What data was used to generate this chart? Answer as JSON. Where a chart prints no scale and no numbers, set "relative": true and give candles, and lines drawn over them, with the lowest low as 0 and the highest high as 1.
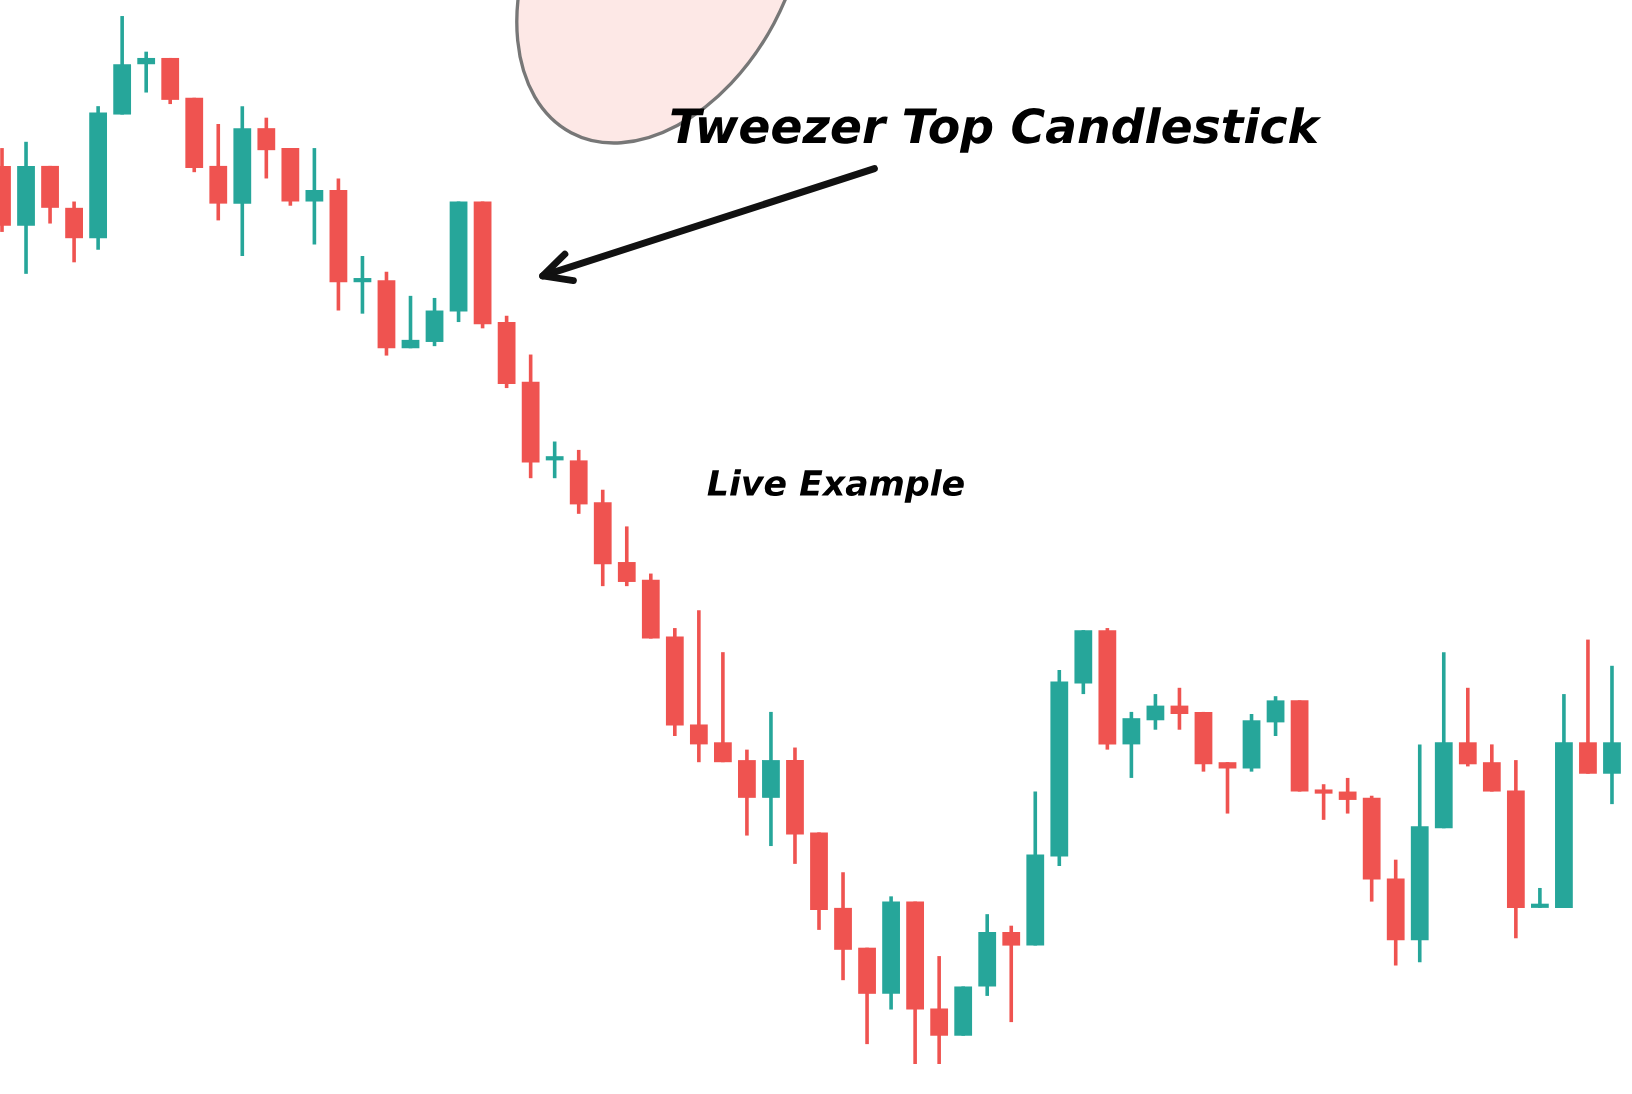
{
  "chart_data": {
    "type": "candlestick",
    "relative": true,
    "categories": [
      null,
      null,
      null,
      null,
      null,
      null,
      null,
      null,
      null,
      null,
      null,
      null,
      null,
      null,
      null,
      null,
      null,
      null,
      null,
      null,
      null,
      null,
      null,
      null,
      null,
      null,
      null,
      null,
      null,
      null,
      null,
      null,
      null,
      null,
      null,
      null,
      null,
      null,
      null,
      null,
      null,
      null,
      null,
      null,
      null,
      null,
      null,
      null,
      null,
      null,
      null,
      null,
      null,
      null,
      null,
      null,
      null,
      null,
      null,
      null,
      null,
      null,
      null,
      null,
      null,
      null,
      null,
      null
    ],
    "ohlc": [
      [
        0.857,
        0.874,
        0.794,
        0.8
      ],
      [
        0.8,
        0.88,
        0.754,
        0.857
      ],
      [
        0.857,
        0.857,
        0.802,
        0.817
      ],
      [
        0.817,
        0.823,
        0.765,
        0.788
      ],
      [
        0.788,
        0.914,
        0.777,
        0.908
      ],
      [
        0.906,
        1.0,
        0.906,
        0.954
      ],
      [
        0.954,
        0.966,
        0.927,
        0.96
      ],
      [
        0.96,
        0.96,
        0.916,
        0.92
      ],
      [
        0.922,
        0.922,
        0.851,
        0.855
      ],
      [
        0.857,
        0.897,
        0.805,
        0.821
      ],
      [
        0.821,
        0.914,
        0.771,
        0.893
      ],
      [
        0.893,
        0.903,
        0.845,
        0.872
      ],
      [
        0.874,
        0.874,
        0.819,
        0.823
      ],
      [
        0.823,
        0.874,
        0.782,
        0.834
      ],
      [
        0.834,
        0.845,
        0.719,
        0.746
      ],
      [
        0.746,
        0.771,
        0.716,
        0.748
      ],
      [
        0.748,
        0.756,
        0.676,
        0.683
      ],
      [
        0.683,
        0.733,
        0.683,
        0.691
      ],
      [
        0.689,
        0.731,
        0.685,
        0.719
      ],
      [
        0.718,
        0.823,
        0.708,
        0.823
      ],
      [
        0.823,
        0.823,
        0.702,
        0.706
      ],
      [
        0.708,
        0.714,
        0.645,
        0.649
      ],
      [
        0.651,
        0.677,
        0.559,
        0.574
      ],
      [
        0.576,
        0.594,
        0.559,
        0.578
      ],
      [
        0.576,
        0.586,
        0.525,
        0.534
      ],
      [
        0.536,
        0.548,
        0.456,
        0.477
      ],
      [
        0.479,
        0.513,
        0.456,
        0.46
      ],
      [
        0.462,
        0.468,
        0.406,
        0.406
      ],
      [
        0.408,
        0.416,
        0.313,
        0.323
      ],
      [
        0.324,
        0.433,
        0.288,
        0.305
      ],
      [
        0.307,
        0.393,
        0.288,
        0.288
      ],
      [
        0.29,
        0.3,
        0.218,
        0.254
      ],
      [
        0.254,
        0.336,
        0.208,
        0.29
      ],
      [
        0.29,
        0.302,
        0.191,
        0.219
      ],
      [
        0.221,
        0.221,
        0.128,
        0.147
      ],
      [
        0.149,
        0.183,
        0.08,
        0.109
      ],
      [
        0.111,
        0.111,
        0.019,
        0.067
      ],
      [
        0.067,
        0.16,
        0.052,
        0.155
      ],
      [
        0.155,
        0.155,
        0.0,
        0.052
      ],
      [
        0.053,
        0.103,
        0.0,
        0.027
      ],
      [
        0.027,
        0.074,
        0.027,
        0.074
      ],
      [
        0.074,
        0.143,
        0.065,
        0.126
      ],
      [
        0.126,
        0.132,
        0.04,
        0.113
      ],
      [
        0.113,
        0.26,
        0.113,
        0.2
      ],
      [
        0.198,
        0.376,
        0.189,
        0.365
      ],
      [
        0.363,
        0.414,
        0.353,
        0.414
      ],
      [
        0.414,
        0.416,
        0.3,
        0.305
      ],
      [
        0.305,
        0.336,
        0.273,
        0.33
      ],
      [
        0.328,
        0.353,
        0.319,
        0.342
      ],
      [
        0.342,
        0.359,
        0.319,
        0.334
      ],
      [
        0.336,
        0.336,
        0.279,
        0.286
      ],
      [
        0.288,
        0.288,
        0.239,
        0.282
      ],
      [
        0.282,
        0.334,
        0.279,
        0.328
      ],
      [
        0.326,
        0.351,
        0.313,
        0.347
      ],
      [
        0.347,
        0.347,
        0.26,
        0.26
      ],
      [
        0.261,
        0.267,
        0.233,
        0.258
      ],
      [
        0.26,
        0.273,
        0.239,
        0.252
      ],
      [
        0.254,
        0.256,
        0.155,
        0.176
      ],
      [
        0.177,
        0.195,
        0.094,
        0.118
      ],
      [
        0.118,
        0.305,
        0.097,
        0.227
      ],
      [
        0.225,
        0.393,
        0.225,
        0.307
      ],
      [
        0.307,
        0.359,
        0.284,
        0.286
      ],
      [
        0.288,
        0.305,
        0.26,
        0.26
      ],
      [
        0.261,
        0.29,
        0.12,
        0.149
      ],
      [
        0.149,
        0.168,
        0.149,
        0.151
      ],
      [
        0.149,
        0.353,
        0.149,
        0.307
      ],
      [
        0.307,
        0.405,
        0.277,
        0.277
      ],
      [
        0.277,
        0.38,
        0.248,
        0.307
      ]
    ],
    "colors": [
      "#ef5350",
      "#26a69a",
      "#ef5350",
      "#ef5350",
      "#26a69a",
      "#26a69a",
      "#26a69a",
      "#ef5350",
      "#ef5350",
      "#ef5350",
      "#26a69a",
      "#ef5350",
      "#ef5350",
      "#26a69a",
      "#ef5350",
      "#26a69a",
      "#ef5350",
      "#26a69a",
      "#26a69a",
      "#26a69a",
      "#ef5350",
      "#ef5350",
      "#ef5350",
      "#26a69a",
      "#ef5350",
      "#ef5350",
      "#ef5350",
      "#ef5350",
      "#ef5350",
      "#ef5350",
      "#ef5350",
      "#ef5350",
      "#26a69a",
      "#ef5350",
      "#ef5350",
      "#ef5350",
      "#ef5350",
      "#26a69a",
      "#ef5350",
      "#ef5350",
      "#26a69a",
      "#26a69a",
      "#ef5350",
      "#26a69a",
      "#26a69a",
      "#26a69a",
      "#ef5350",
      "#26a69a",
      "#26a69a",
      "#ef5350",
      "#ef5350",
      "#ef5350",
      "#26a69a",
      "#26a69a",
      "#ef5350",
      "#ef5350",
      "#ef5350",
      "#ef5350",
      "#ef5350",
      "#26a69a",
      "#26a69a",
      "#ef5350",
      "#ef5350",
      "#ef5350",
      "#26a69a",
      "#26a69a",
      "#ef5350",
      "#26a69a"
    ],
    "annotations": [
      "Tweezer Top Candlestick",
      "Live Example"
    ]
  }
}
